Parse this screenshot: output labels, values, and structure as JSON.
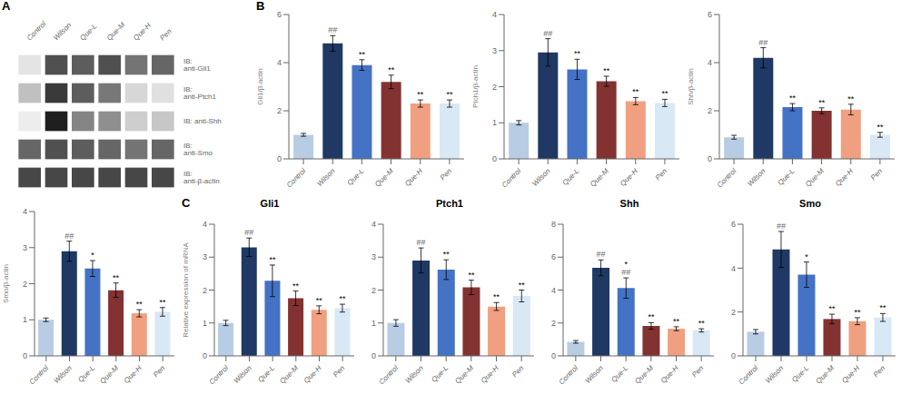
{
  "chart_data": [
    {
      "type": "heatmap",
      "categories": [
        "Control",
        "Wilson",
        "Que-L",
        "Que-M",
        "Que-H",
        "Pen"
      ],
      "y_categories": [
        "IB: anti-Gli1",
        "IB: anti-Ptch1",
        "IB: anti-Shh",
        "IB: anti-Smo",
        "IB: anti-β-actin"
      ],
      "cells": [
        [
          0.12,
          0.78,
          0.72,
          0.78,
          0.62,
          0.68
        ],
        [
          0.28,
          0.88,
          0.72,
          0.6,
          0.18,
          0.14
        ],
        [
          0.08,
          1.0,
          0.55,
          0.5,
          0.22,
          0.25
        ],
        [
          0.68,
          0.78,
          0.72,
          0.68,
          0.62,
          0.68
        ],
        [
          0.82,
          0.82,
          0.82,
          0.82,
          0.82,
          0.82
        ]
      ],
      "annotations": [
        {
          "text": "A"
        }
      ]
    },
    {
      "type": "bar",
      "ylabel": "Gli1/β-actin",
      "categories": [
        "Control",
        "Wilson",
        "Que-L",
        "Que-M",
        "Que-H",
        "Pen"
      ],
      "colors": [
        "#b8cce4",
        "#1f3864",
        "#4472c4",
        "#833232",
        "#f0a080",
        "#d9e8f5"
      ],
      "values": [
        1.0,
        4.8,
        3.9,
        3.2,
        2.3,
        2.3
      ],
      "errors": [
        0.06,
        0.32,
        0.22,
        0.28,
        0.15,
        0.15
      ],
      "ylim": [
        0,
        6
      ],
      "yticks": [
        0,
        2,
        4,
        6
      ],
      "annotations": [
        {
          "text": "B"
        },
        {
          "x": "Wilson",
          "text": "##",
          "color": "#666666"
        },
        {
          "x": "Que-L",
          "text": "**",
          "color": "#000000"
        },
        {
          "x": "Que-M",
          "text": "**",
          "color": "#000000"
        },
        {
          "x": "Que-H",
          "text": "**",
          "color": "#000000"
        },
        {
          "x": "Pen",
          "text": "**",
          "color": "#000000"
        }
      ]
    },
    {
      "type": "bar",
      "ylabel": "Ptch1/β-actin",
      "categories": [
        "Control",
        "Wilson",
        "Que-L",
        "Que-M",
        "Que-H",
        "Pen"
      ],
      "colors": [
        "#b8cce4",
        "#1f3864",
        "#4472c4",
        "#833232",
        "#f0a080",
        "#d9e8f5"
      ],
      "values": [
        1.0,
        2.95,
        2.48,
        2.15,
        1.6,
        1.55
      ],
      "errors": [
        0.06,
        0.38,
        0.28,
        0.14,
        0.1,
        0.1
      ],
      "ylim": [
        0,
        4
      ],
      "yticks": [
        0,
        1,
        2,
        3,
        4
      ],
      "annotations": [
        {
          "x": "Wilson",
          "text": "##",
          "color": "#666666"
        },
        {
          "x": "Que-L",
          "text": "**",
          "color": "#000000"
        },
        {
          "x": "Que-M",
          "text": "**",
          "color": "#000000"
        },
        {
          "x": "Que-H",
          "text": "**",
          "color": "#000000"
        },
        {
          "x": "Pen",
          "text": "**",
          "color": "#000000"
        }
      ]
    },
    {
      "type": "bar",
      "ylabel": "Shh/β-actin",
      "categories": [
        "Control",
        "Wilson",
        "Que-L",
        "Que-M",
        "Que-H",
        "Pen"
      ],
      "colors": [
        "#b8cce4",
        "#1f3864",
        "#4472c4",
        "#833232",
        "#f0a080",
        "#d9e8f5"
      ],
      "values": [
        0.9,
        4.2,
        2.15,
        2.0,
        2.05,
        1.0
      ],
      "errors": [
        0.08,
        0.42,
        0.15,
        0.12,
        0.22,
        0.1
      ],
      "ylim": [
        0,
        6
      ],
      "yticks": [
        0,
        2,
        4,
        6
      ],
      "annotations": [
        {
          "x": "Wilson",
          "text": "##",
          "color": "#666666"
        },
        {
          "x": "Que-L",
          "text": "**",
          "color": "#000000"
        },
        {
          "x": "Que-M",
          "text": "**",
          "color": "#000000"
        },
        {
          "x": "Que-H",
          "text": "**",
          "color": "#000000"
        },
        {
          "x": "Pen",
          "text": "**",
          "color": "#000000"
        }
      ]
    },
    {
      "type": "bar",
      "ylabel": "Smo/β-actin",
      "categories": [
        "Control",
        "Wilson",
        "Que-L",
        "Que-M",
        "Que-H",
        "Pen"
      ],
      "colors": [
        "#b8cce4",
        "#1f3864",
        "#4472c4",
        "#833232",
        "#f0a080",
        "#d9e8f5"
      ],
      "values": [
        1.0,
        2.9,
        2.42,
        1.82,
        1.18,
        1.22
      ],
      "errors": [
        0.05,
        0.28,
        0.22,
        0.2,
        0.1,
        0.12
      ],
      "ylim": [
        0,
        4
      ],
      "yticks": [
        0,
        1,
        2,
        3,
        4
      ],
      "annotations": [
        {
          "x": "Wilson",
          "text": "##",
          "color": "#666666"
        },
        {
          "x": "Que-L",
          "text": "*",
          "color": "#000000"
        },
        {
          "x": "Que-M",
          "text": "**",
          "color": "#000000"
        },
        {
          "x": "Que-H",
          "text": "**",
          "color": "#000000"
        },
        {
          "x": "Pen",
          "text": "**",
          "color": "#000000"
        }
      ]
    },
    {
      "type": "bar",
      "title": "Gli1",
      "ylabel": "Relative expression of mRNA",
      "categories": [
        "Control",
        "Wilson",
        "Que-L",
        "Que-M",
        "Que-H",
        "Pen"
      ],
      "colors": [
        "#b8cce4",
        "#1f3864",
        "#4472c4",
        "#833232",
        "#f0a080",
        "#d9e8f5"
      ],
      "values": [
        1.0,
        3.3,
        2.28,
        1.75,
        1.4,
        1.45
      ],
      "errors": [
        0.08,
        0.28,
        0.48,
        0.22,
        0.12,
        0.12
      ],
      "ylim": [
        0,
        4
      ],
      "yticks": [
        0,
        1,
        2,
        3,
        4
      ],
      "annotations": [
        {
          "text": "C"
        },
        {
          "x": "Wilson",
          "text": "##",
          "color": "#666666"
        },
        {
          "x": "Que-L",
          "text": "**",
          "color": "#000000"
        },
        {
          "x": "Que-M",
          "text": "**",
          "color": "#000000"
        },
        {
          "x": "Que-H",
          "text": "**",
          "color": "#000000"
        },
        {
          "x": "Pen",
          "text": "**",
          "color": "#000000"
        }
      ]
    },
    {
      "type": "bar",
      "title": "Ptch1",
      "categories": [
        "Control",
        "Wilson",
        "Que-L",
        "Que-M",
        "Que-H",
        "Pen"
      ],
      "colors": [
        "#b8cce4",
        "#1f3864",
        "#4472c4",
        "#833232",
        "#f0a080",
        "#d9e8f5"
      ],
      "values": [
        1.0,
        2.9,
        2.62,
        2.08,
        1.5,
        1.82
      ],
      "errors": [
        0.1,
        0.38,
        0.3,
        0.22,
        0.12,
        0.18
      ],
      "ylim": [
        0,
        4
      ],
      "yticks": [
        0,
        1,
        2,
        3,
        4
      ],
      "annotations": [
        {
          "x": "Wilson",
          "text": "##",
          "color": "#666666"
        },
        {
          "x": "Que-L",
          "text": "**",
          "color": "#000000"
        },
        {
          "x": "Que-M",
          "text": "**",
          "color": "#000000"
        },
        {
          "x": "Que-H",
          "text": "**",
          "color": "#000000"
        },
        {
          "x": "Pen",
          "text": "**",
          "color": "#000000"
        }
      ]
    },
    {
      "type": "bar",
      "title": "Shh",
      "categories": [
        "Control",
        "Wilson",
        "Que-L",
        "Que-M",
        "Que-H",
        "Pen"
      ],
      "colors": [
        "#b8cce4",
        "#1f3864",
        "#4472c4",
        "#833232",
        "#f0a080",
        "#d9e8f5"
      ],
      "values": [
        0.85,
        5.35,
        4.12,
        1.82,
        1.65,
        1.55
      ],
      "errors": [
        0.08,
        0.48,
        0.62,
        0.2,
        0.12,
        0.1
      ],
      "ylim": [
        0,
        8
      ],
      "yticks": [
        0,
        2,
        4,
        6,
        8
      ],
      "annotations": [
        {
          "x": "Wilson",
          "text": "##",
          "color": "#666666"
        },
        {
          "x": "Que-L",
          "text": "##",
          "color": "#666666"
        },
        {
          "x": "Que-L",
          "text": "*",
          "color": "#000000"
        },
        {
          "x": "Que-M",
          "text": "**",
          "color": "#000000"
        },
        {
          "x": "Que-H",
          "text": "**",
          "color": "#000000"
        },
        {
          "x": "Pen",
          "text": "**",
          "color": "#000000"
        }
      ]
    },
    {
      "type": "bar",
      "title": "Smo",
      "categories": [
        "Control",
        "Wilson",
        "Que-L",
        "Que-M",
        "Que-H",
        "Pen"
      ],
      "colors": [
        "#b8cce4",
        "#1f3864",
        "#4472c4",
        "#833232",
        "#f0a080",
        "#d9e8f5"
      ],
      "values": [
        1.1,
        4.85,
        3.7,
        1.68,
        1.58,
        1.75
      ],
      "errors": [
        0.1,
        0.82,
        0.58,
        0.22,
        0.16,
        0.18
      ],
      "ylim": [
        0,
        6
      ],
      "yticks": [
        0,
        2,
        4,
        6
      ],
      "annotations": [
        {
          "x": "Wilson",
          "text": "##",
          "color": "#666666"
        },
        {
          "x": "Que-L",
          "text": "*",
          "color": "#000000"
        },
        {
          "x": "Que-M",
          "text": "**",
          "color": "#000000"
        },
        {
          "x": "Que-H",
          "text": "**",
          "color": "#000000"
        },
        {
          "x": "Pen",
          "text": "**",
          "color": "#000000"
        }
      ]
    }
  ]
}
